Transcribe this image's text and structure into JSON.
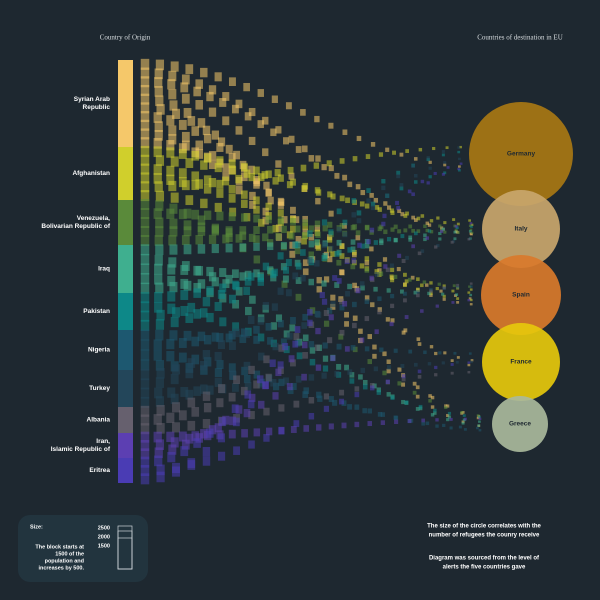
{
  "header": {
    "origin_title": "Country of Origin",
    "destination_title": "Countries of destination in EU"
  },
  "origins": [
    {
      "lines": [
        "Syrian Arab",
        "Republic"
      ],
      "color": "#f5c86a"
    },
    {
      "lines": [
        "Afghanistan"
      ],
      "color": "#d0cf2c"
    },
    {
      "lines": [
        "Venezuela,",
        "Bolivarian Republic of"
      ],
      "color": "#5a8a3a"
    },
    {
      "lines": [
        "Iraq"
      ],
      "color": "#3faf8f"
    },
    {
      "lines": [
        "Pakistan"
      ],
      "color": "#0d8888"
    },
    {
      "lines": [
        "Nigeria"
      ],
      "color": "#1d5870"
    },
    {
      "lines": [
        "Turkey"
      ],
      "color": "#23465a"
    },
    {
      "lines": [
        "Albania"
      ],
      "color": "#66606e"
    },
    {
      "lines": [
        "Iran,",
        "Islamic Republic of"
      ],
      "color": "#5c3fb2"
    },
    {
      "lines": [
        "Eritrea"
      ],
      "color": "#4a3cb4"
    }
  ],
  "destinations": [
    {
      "label": "Germany",
      "color": "#a87713"
    },
    {
      "label": "Italy",
      "color": "#c9a66c"
    },
    {
      "label": "Spain",
      "color": "#d97a2b"
    },
    {
      "label": "France",
      "color": "#e6c80c"
    },
    {
      "label": "Greece",
      "color": "#a9b99c"
    }
  ],
  "legend": {
    "title": "Size:",
    "levels": [
      "2500",
      "2000",
      "1500"
    ],
    "description": [
      "The block starts at",
      "1500 of the",
      "population and",
      "increases by 500."
    ]
  },
  "notes": [
    [
      "The size of the circle correlates with the",
      "number of refugees the counry receive"
    ],
    [
      "Diagram was sourced from the level of",
      "alerts the five countries gave"
    ]
  ]
}
